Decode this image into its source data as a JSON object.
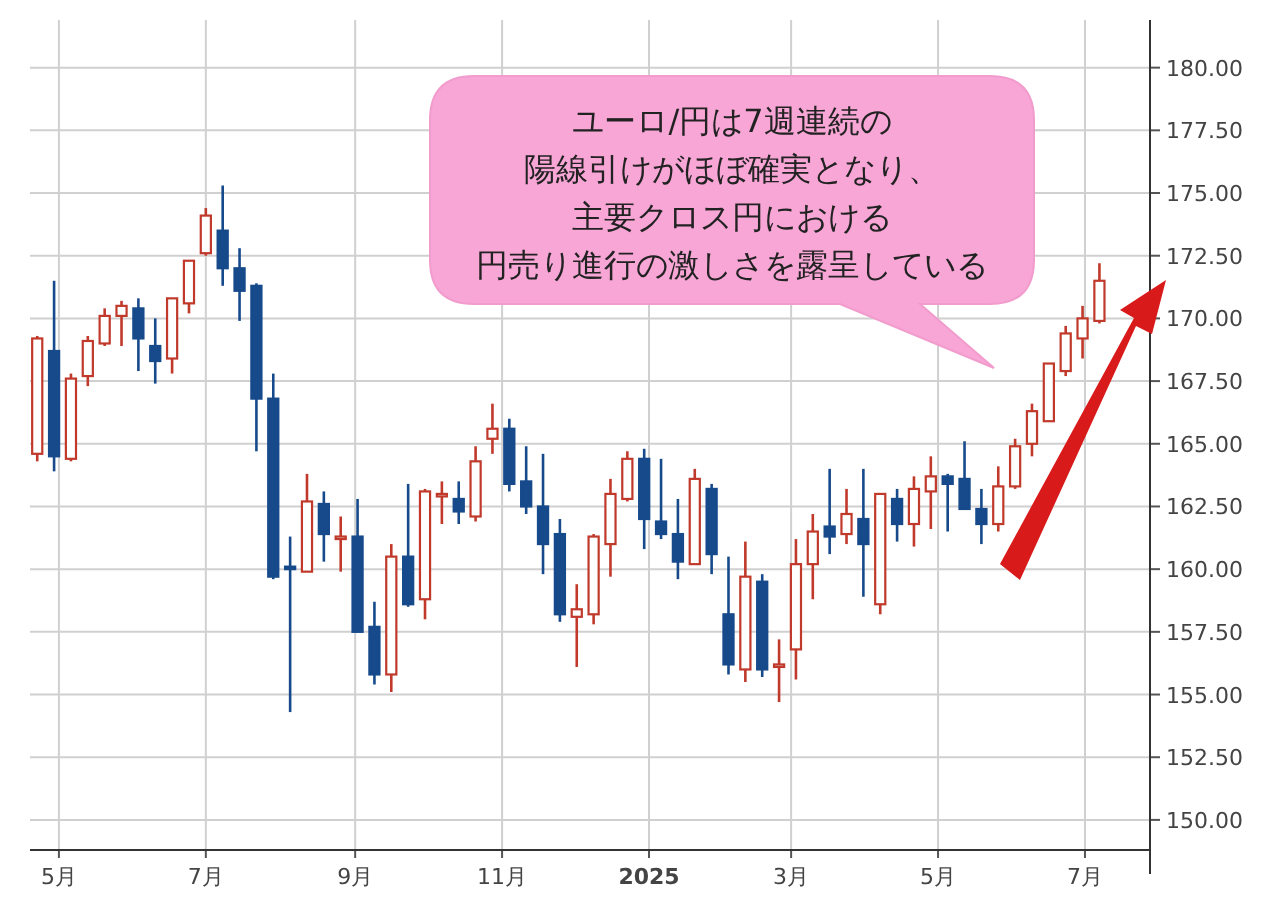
{
  "chart_data": {
    "type": "candlestick",
    "x": [
      "2024-04-22",
      "2024-04-29",
      "2024-05-06",
      "2024-05-13",
      "2024-05-20",
      "2024-05-27",
      "2024-06-03",
      "2024-06-10",
      "2024-06-17",
      "2024-06-24",
      "2024-07-01",
      "2024-07-08",
      "2024-07-15",
      "2024-07-22",
      "2024-07-29",
      "2024-08-05",
      "2024-08-12",
      "2024-08-19",
      "2024-08-26",
      "2024-09-02",
      "2024-09-09",
      "2024-09-16",
      "2024-09-23",
      "2024-09-30",
      "2024-10-07",
      "2024-10-14",
      "2024-10-21",
      "2024-10-28",
      "2024-11-04",
      "2024-11-11",
      "2024-11-18",
      "2024-11-25",
      "2024-12-02",
      "2024-12-09",
      "2024-12-16",
      "2024-12-23",
      "2024-12-30",
      "2025-01-06",
      "2025-01-13",
      "2025-01-20",
      "2025-01-27",
      "2025-02-03",
      "2025-02-10",
      "2025-02-17",
      "2025-02-24",
      "2025-03-03",
      "2025-03-10",
      "2025-03-17",
      "2025-03-24",
      "2025-03-31",
      "2025-04-07",
      "2025-04-14",
      "2025-04-21",
      "2025-04-28",
      "2025-05-05",
      "2025-05-12",
      "2025-05-19",
      "2025-05-26",
      "2025-06-02",
      "2025-06-09",
      "2025-06-16",
      "2025-06-23",
      "2025-06-30",
      "2025-07-07"
    ],
    "ohlc": [
      [
        164.6,
        169.3,
        164.3,
        169.2
      ],
      [
        168.7,
        171.5,
        163.9,
        164.5
      ],
      [
        164.4,
        167.8,
        164.3,
        167.6
      ],
      [
        167.7,
        169.3,
        167.3,
        169.1
      ],
      [
        169.0,
        170.4,
        168.9,
        170.1
      ],
      [
        170.1,
        170.7,
        168.9,
        170.5
      ],
      [
        170.4,
        170.8,
        167.9,
        169.2
      ],
      [
        168.9,
        170.0,
        167.4,
        168.3
      ],
      [
        168.4,
        170.8,
        167.8,
        170.8
      ],
      [
        170.6,
        172.3,
        170.2,
        172.3
      ],
      [
        172.6,
        174.4,
        172.5,
        174.1
      ],
      [
        173.5,
        175.3,
        171.3,
        172.0
      ],
      [
        172.0,
        172.8,
        169.9,
        171.1
      ],
      [
        171.3,
        171.4,
        164.7,
        166.8
      ],
      [
        166.8,
        167.8,
        159.6,
        159.7
      ],
      [
        160.1,
        161.3,
        154.3,
        160.0
      ],
      [
        159.9,
        163.8,
        159.9,
        162.7
      ],
      [
        162.6,
        163.1,
        160.3,
        161.4
      ],
      [
        161.2,
        162.1,
        159.9,
        161.3
      ],
      [
        161.3,
        162.8,
        157.5,
        157.5
      ],
      [
        157.7,
        158.7,
        155.4,
        155.8
      ],
      [
        155.8,
        161.0,
        155.1,
        160.5
      ],
      [
        160.5,
        163.4,
        158.5,
        158.6
      ],
      [
        158.8,
        163.2,
        158.0,
        163.1
      ],
      [
        162.9,
        163.5,
        161.8,
        163.0
      ],
      [
        162.8,
        163.5,
        161.8,
        162.3
      ],
      [
        162.1,
        164.9,
        161.9,
        164.3
      ],
      [
        165.2,
        166.6,
        164.6,
        165.6
      ],
      [
        165.6,
        166.0,
        163.1,
        163.4
      ],
      [
        163.5,
        164.9,
        162.2,
        162.5
      ],
      [
        162.5,
        164.6,
        159.8,
        161.0
      ],
      [
        161.4,
        162.0,
        157.9,
        158.2
      ],
      [
        158.1,
        159.4,
        156.1,
        158.4
      ],
      [
        158.2,
        161.4,
        157.8,
        161.3
      ],
      [
        161.0,
        163.6,
        159.7,
        163.0
      ],
      [
        162.8,
        164.7,
        162.7,
        164.4
      ],
      [
        164.4,
        164.8,
        160.8,
        162.0
      ],
      [
        161.9,
        164.4,
        161.2,
        161.4
      ],
      [
        161.4,
        162.8,
        159.6,
        160.3
      ],
      [
        160.2,
        164.0,
        160.2,
        163.6
      ],
      [
        163.2,
        163.4,
        159.8,
        160.6
      ],
      [
        158.2,
        160.5,
        155.8,
        156.2
      ],
      [
        156.0,
        161.1,
        155.5,
        159.7
      ],
      [
        159.5,
        159.8,
        155.7,
        156.0
      ],
      [
        156.1,
        157.2,
        154.7,
        156.2
      ],
      [
        156.8,
        161.2,
        155.6,
        160.2
      ],
      [
        160.2,
        162.2,
        158.8,
        161.5
      ],
      [
        161.7,
        164.0,
        160.6,
        161.3
      ],
      [
        161.4,
        163.2,
        161.0,
        162.2
      ],
      [
        162.0,
        164.0,
        158.9,
        161.0
      ],
      [
        158.6,
        163.0,
        158.2,
        163.0
      ],
      [
        162.8,
        163.2,
        161.1,
        161.8
      ],
      [
        161.8,
        163.7,
        160.9,
        163.2
      ],
      [
        163.1,
        164.5,
        161.6,
        163.7
      ],
      [
        163.7,
        163.8,
        161.5,
        163.4
      ],
      [
        163.6,
        165.1,
        162.4,
        162.4
      ],
      [
        162.4,
        163.2,
        161.0,
        161.8
      ],
      [
        161.8,
        164.1,
        161.5,
        163.3
      ],
      [
        163.3,
        165.2,
        163.2,
        164.9
      ],
      [
        165.0,
        166.6,
        164.5,
        166.3
      ],
      [
        165.9,
        168.2,
        165.9,
        168.2
      ],
      [
        167.9,
        169.7,
        167.7,
        169.4
      ],
      [
        169.2,
        170.5,
        168.4,
        170.0
      ],
      [
        169.9,
        172.2,
        169.8,
        171.5
      ]
    ],
    "xlim": [
      "2024-04-19",
      "2025-07-28"
    ],
    "xticks": [
      {
        "value": "2024-05-01",
        "label": "5月"
      },
      {
        "value": "2024-07-01",
        "label": "7月"
      },
      {
        "value": "2024-09-01",
        "label": "9月"
      },
      {
        "value": "2024-11-01",
        "label": "11月"
      },
      {
        "value": "2025-01-01",
        "label": "2025"
      },
      {
        "value": "2025-03-01",
        "label": "3月"
      },
      {
        "value": "2025-05-01",
        "label": "5月"
      },
      {
        "value": "2025-07-01",
        "label": "7月"
      }
    ],
    "ylim": [
      148.8,
      181.9
    ],
    "yticks": [
      {
        "value": 150,
        "label": "150.00"
      },
      {
        "value": 152.5,
        "label": "152.50"
      },
      {
        "value": 155,
        "label": "155.00"
      },
      {
        "value": 157.5,
        "label": "157.50"
      },
      {
        "value": 160,
        "label": "160.00"
      },
      {
        "value": 162.5,
        "label": "162.50"
      },
      {
        "value": 165,
        "label": "165.00"
      },
      {
        "value": 167.5,
        "label": "167.50"
      },
      {
        "value": 170,
        "label": "170.00"
      },
      {
        "value": 172.5,
        "label": "172.50"
      },
      {
        "value": 175,
        "label": "175.00"
      },
      {
        "value": 177.5,
        "label": "177.50"
      },
      {
        "value": 180,
        "label": "180.00"
      }
    ],
    "grid": true,
    "annotations": [
      "ユーロ/円は7週連続の",
      "陽線引けがほぼ確実となり、",
      "主要クロス円における",
      "円売り進行の激しさを露呈している"
    ]
  }
}
